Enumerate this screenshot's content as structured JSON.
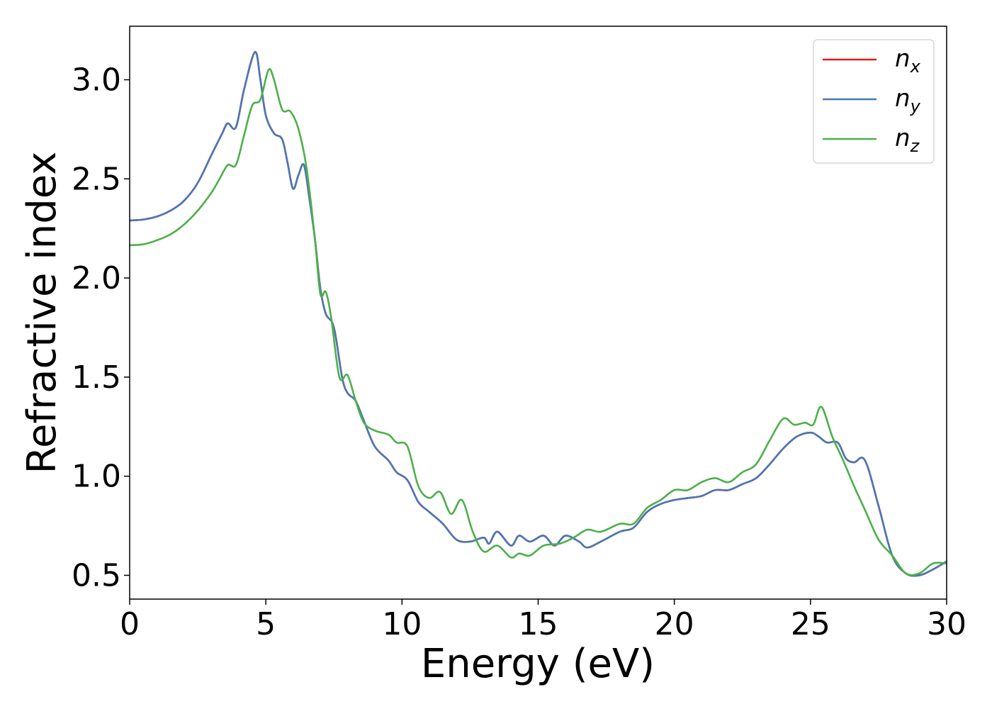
{
  "chart_data": {
    "type": "line",
    "xlabel": "Energy (eV)",
    "ylabel": "Refractive index",
    "xlim": [
      0,
      30
    ],
    "ylim": [
      0.38,
      3.27
    ],
    "xticks": [
      0,
      5,
      10,
      15,
      20,
      25,
      30
    ],
    "yticks": [
      0.5,
      1.0,
      1.5,
      2.0,
      2.5,
      3.0
    ],
    "xtick_labels": [
      "0",
      "5",
      "10",
      "15",
      "20",
      "25",
      "30"
    ],
    "ytick_labels": [
      "0.5",
      "1.0",
      "1.5",
      "2.0",
      "2.5",
      "3.0"
    ],
    "grid": false,
    "legend_position": "top-right",
    "series": [
      {
        "name": "n_x",
        "label_base": "n",
        "label_sub": "x",
        "color": "#e41a1c",
        "points": [
          [
            0,
            2.29
          ],
          [
            0.5,
            2.295
          ],
          [
            1,
            2.31
          ],
          [
            1.5,
            2.34
          ],
          [
            2,
            2.39
          ],
          [
            2.5,
            2.48
          ],
          [
            3,
            2.62
          ],
          [
            3.4,
            2.73
          ],
          [
            3.6,
            2.78
          ],
          [
            3.9,
            2.76
          ],
          [
            4.2,
            2.95
          ],
          [
            4.6,
            3.14
          ],
          [
            4.8,
            3.0
          ],
          [
            5.0,
            2.82
          ],
          [
            5.3,
            2.73
          ],
          [
            5.6,
            2.7
          ],
          [
            5.8,
            2.58
          ],
          [
            6.0,
            2.45
          ],
          [
            6.2,
            2.52
          ],
          [
            6.4,
            2.57
          ],
          [
            6.6,
            2.4
          ],
          [
            6.8,
            2.2
          ],
          [
            7.0,
            1.95
          ],
          [
            7.2,
            1.82
          ],
          [
            7.5,
            1.75
          ],
          [
            7.8,
            1.5
          ],
          [
            8.0,
            1.42
          ],
          [
            8.3,
            1.38
          ],
          [
            8.6,
            1.28
          ],
          [
            9.0,
            1.15
          ],
          [
            9.5,
            1.08
          ],
          [
            9.8,
            1.02
          ],
          [
            10.2,
            0.98
          ],
          [
            10.6,
            0.87
          ],
          [
            11.0,
            0.82
          ],
          [
            11.5,
            0.76
          ],
          [
            12.0,
            0.68
          ],
          [
            12.5,
            0.67
          ],
          [
            13.0,
            0.69
          ],
          [
            13.2,
            0.66
          ],
          [
            13.5,
            0.72
          ],
          [
            14.0,
            0.65
          ],
          [
            14.3,
            0.7
          ],
          [
            14.7,
            0.67
          ],
          [
            15.2,
            0.7
          ],
          [
            15.6,
            0.65
          ],
          [
            16.0,
            0.7
          ],
          [
            16.5,
            0.67
          ],
          [
            16.8,
            0.64
          ],
          [
            17.3,
            0.67
          ],
          [
            18.0,
            0.72
          ],
          [
            18.5,
            0.74
          ],
          [
            19.0,
            0.82
          ],
          [
            19.5,
            0.86
          ],
          [
            20.0,
            0.88
          ],
          [
            20.5,
            0.89
          ],
          [
            21.0,
            0.9
          ],
          [
            21.5,
            0.93
          ],
          [
            22.0,
            0.93
          ],
          [
            22.5,
            0.96
          ],
          [
            23.0,
            0.99
          ],
          [
            23.5,
            1.06
          ],
          [
            24.0,
            1.14
          ],
          [
            24.5,
            1.2
          ],
          [
            25.0,
            1.22
          ],
          [
            25.3,
            1.2
          ],
          [
            25.6,
            1.17
          ],
          [
            26.0,
            1.17
          ],
          [
            26.3,
            1.09
          ],
          [
            26.6,
            1.07
          ],
          [
            27.0,
            1.08
          ],
          [
            27.5,
            0.85
          ],
          [
            28.0,
            0.6
          ],
          [
            28.5,
            0.51
          ],
          [
            29.0,
            0.5
          ],
          [
            29.5,
            0.53
          ],
          [
            30,
            0.57
          ]
        ]
      },
      {
        "name": "n_y",
        "label_base": "n",
        "label_sub": "y",
        "color": "#4a78b4",
        "points": [
          [
            0,
            2.29
          ],
          [
            0.5,
            2.295
          ],
          [
            1,
            2.31
          ],
          [
            1.5,
            2.34
          ],
          [
            2,
            2.39
          ],
          [
            2.5,
            2.48
          ],
          [
            3,
            2.62
          ],
          [
            3.4,
            2.73
          ],
          [
            3.6,
            2.78
          ],
          [
            3.9,
            2.76
          ],
          [
            4.2,
            2.95
          ],
          [
            4.6,
            3.14
          ],
          [
            4.8,
            3.0
          ],
          [
            5.0,
            2.82
          ],
          [
            5.3,
            2.73
          ],
          [
            5.6,
            2.7
          ],
          [
            5.8,
            2.58
          ],
          [
            6.0,
            2.45
          ],
          [
            6.2,
            2.52
          ],
          [
            6.4,
            2.57
          ],
          [
            6.6,
            2.4
          ],
          [
            6.8,
            2.2
          ],
          [
            7.0,
            1.95
          ],
          [
            7.2,
            1.82
          ],
          [
            7.5,
            1.75
          ],
          [
            7.8,
            1.5
          ],
          [
            8.0,
            1.42
          ],
          [
            8.3,
            1.38
          ],
          [
            8.6,
            1.28
          ],
          [
            9.0,
            1.15
          ],
          [
            9.5,
            1.08
          ],
          [
            9.8,
            1.02
          ],
          [
            10.2,
            0.98
          ],
          [
            10.6,
            0.87
          ],
          [
            11.0,
            0.82
          ],
          [
            11.5,
            0.76
          ],
          [
            12.0,
            0.68
          ],
          [
            12.5,
            0.67
          ],
          [
            13.0,
            0.69
          ],
          [
            13.2,
            0.66
          ],
          [
            13.5,
            0.72
          ],
          [
            14.0,
            0.65
          ],
          [
            14.3,
            0.7
          ],
          [
            14.7,
            0.67
          ],
          [
            15.2,
            0.7
          ],
          [
            15.6,
            0.65
          ],
          [
            16.0,
            0.7
          ],
          [
            16.5,
            0.67
          ],
          [
            16.8,
            0.64
          ],
          [
            17.3,
            0.67
          ],
          [
            18.0,
            0.72
          ],
          [
            18.5,
            0.74
          ],
          [
            19.0,
            0.82
          ],
          [
            19.5,
            0.86
          ],
          [
            20.0,
            0.88
          ],
          [
            20.5,
            0.89
          ],
          [
            21.0,
            0.9
          ],
          [
            21.5,
            0.93
          ],
          [
            22.0,
            0.93
          ],
          [
            22.5,
            0.96
          ],
          [
            23.0,
            0.99
          ],
          [
            23.5,
            1.06
          ],
          [
            24.0,
            1.14
          ],
          [
            24.5,
            1.2
          ],
          [
            25.0,
            1.22
          ],
          [
            25.3,
            1.2
          ],
          [
            25.6,
            1.17
          ],
          [
            26.0,
            1.17
          ],
          [
            26.3,
            1.09
          ],
          [
            26.6,
            1.07
          ],
          [
            27.0,
            1.08
          ],
          [
            27.5,
            0.85
          ],
          [
            28.0,
            0.6
          ],
          [
            28.5,
            0.51
          ],
          [
            29.0,
            0.5
          ],
          [
            29.5,
            0.53
          ],
          [
            30,
            0.57
          ]
        ]
      },
      {
        "name": "n_z",
        "label_base": "n",
        "label_sub": "z",
        "color": "#4daf4a",
        "points": [
          [
            0,
            2.165
          ],
          [
            0.5,
            2.17
          ],
          [
            1,
            2.19
          ],
          [
            1.5,
            2.22
          ],
          [
            2,
            2.27
          ],
          [
            2.5,
            2.34
          ],
          [
            3,
            2.43
          ],
          [
            3.3,
            2.5
          ],
          [
            3.6,
            2.57
          ],
          [
            3.9,
            2.57
          ],
          [
            4.2,
            2.72
          ],
          [
            4.5,
            2.87
          ],
          [
            4.8,
            2.9
          ],
          [
            5.1,
            3.05
          ],
          [
            5.3,
            3.0
          ],
          [
            5.6,
            2.85
          ],
          [
            5.9,
            2.84
          ],
          [
            6.2,
            2.75
          ],
          [
            6.5,
            2.55
          ],
          [
            6.8,
            2.2
          ],
          [
            7.0,
            1.92
          ],
          [
            7.2,
            1.93
          ],
          [
            7.4,
            1.8
          ],
          [
            7.7,
            1.5
          ],
          [
            8.0,
            1.51
          ],
          [
            8.3,
            1.38
          ],
          [
            8.6,
            1.27
          ],
          [
            9.0,
            1.23
          ],
          [
            9.5,
            1.21
          ],
          [
            9.8,
            1.17
          ],
          [
            10.2,
            1.15
          ],
          [
            10.6,
            0.95
          ],
          [
            11.0,
            0.89
          ],
          [
            11.4,
            0.92
          ],
          [
            11.8,
            0.81
          ],
          [
            12.2,
            0.88
          ],
          [
            12.6,
            0.72
          ],
          [
            13.0,
            0.62
          ],
          [
            13.5,
            0.65
          ],
          [
            14.0,
            0.59
          ],
          [
            14.3,
            0.61
          ],
          [
            14.7,
            0.6
          ],
          [
            15.2,
            0.65
          ],
          [
            15.8,
            0.66
          ],
          [
            16.3,
            0.69
          ],
          [
            16.8,
            0.73
          ],
          [
            17.3,
            0.72
          ],
          [
            18.0,
            0.76
          ],
          [
            18.5,
            0.76
          ],
          [
            19.0,
            0.84
          ],
          [
            19.5,
            0.88
          ],
          [
            20.0,
            0.93
          ],
          [
            20.5,
            0.93
          ],
          [
            21.0,
            0.97
          ],
          [
            21.5,
            0.99
          ],
          [
            22.0,
            0.97
          ],
          [
            22.5,
            1.02
          ],
          [
            23.0,
            1.06
          ],
          [
            23.5,
            1.18
          ],
          [
            24.0,
            1.29
          ],
          [
            24.4,
            1.26
          ],
          [
            24.8,
            1.27
          ],
          [
            25.1,
            1.26
          ],
          [
            25.4,
            1.35
          ],
          [
            25.8,
            1.2
          ],
          [
            26.2,
            1.08
          ],
          [
            26.6,
            0.95
          ],
          [
            27.0,
            0.83
          ],
          [
            27.5,
            0.68
          ],
          [
            28.0,
            0.6
          ],
          [
            28.5,
            0.51
          ],
          [
            29.0,
            0.51
          ],
          [
            29.5,
            0.56
          ],
          [
            30,
            0.56
          ]
        ]
      }
    ]
  }
}
